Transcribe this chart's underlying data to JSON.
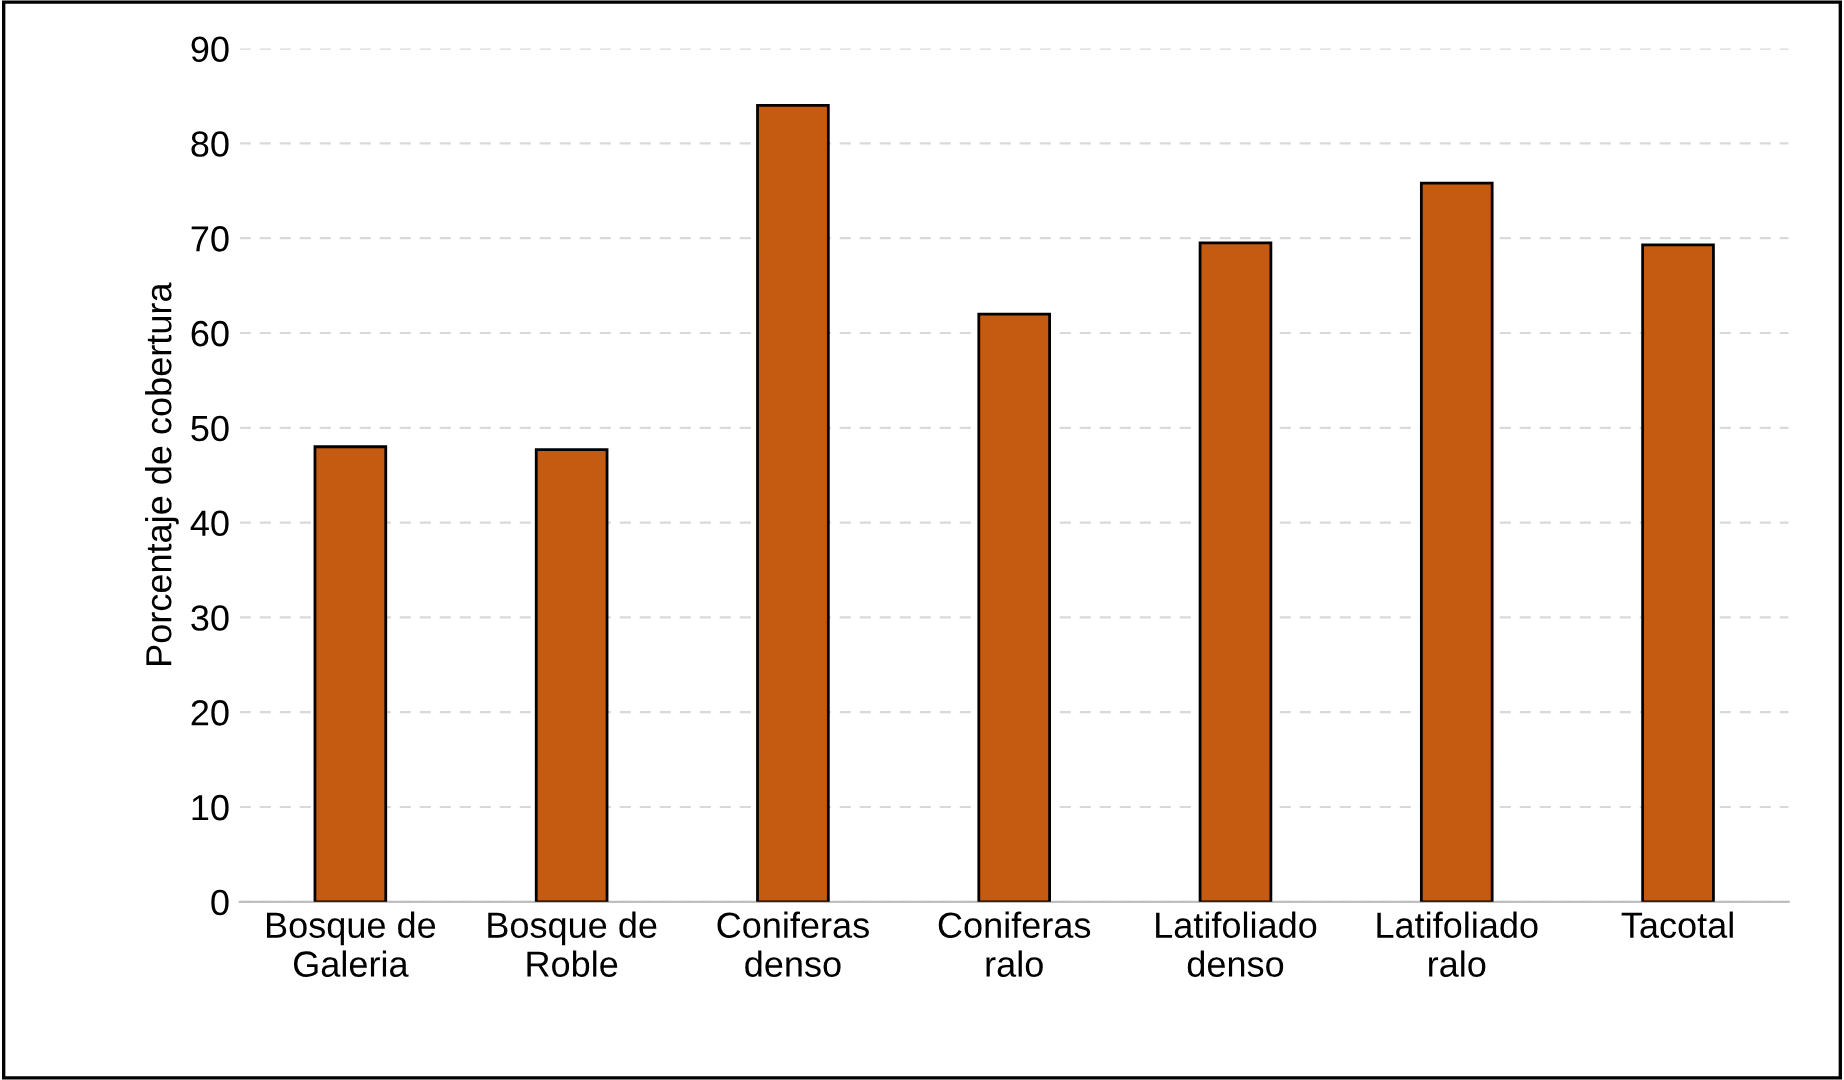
{
  "chart_data": {
    "type": "bar",
    "ylabel": "Porcentaje de cobertura",
    "categories": [
      "Bosque de\nGaleria",
      "Bosque de\nRoble",
      "Coniferas\ndenso",
      "Coniferas\nralo",
      "Latifoliado\ndenso",
      "Latifoliado\nralo",
      "Tacotal"
    ],
    "values": [
      48,
      47.7,
      84,
      62,
      69.5,
      75.8,
      69.3
    ],
    "color": "#c55a11",
    "ylim": [
      0,
      90
    ],
    "yticks": [
      0,
      10,
      20,
      30,
      40,
      50,
      60,
      70,
      80,
      90
    ],
    "grid": "y"
  }
}
